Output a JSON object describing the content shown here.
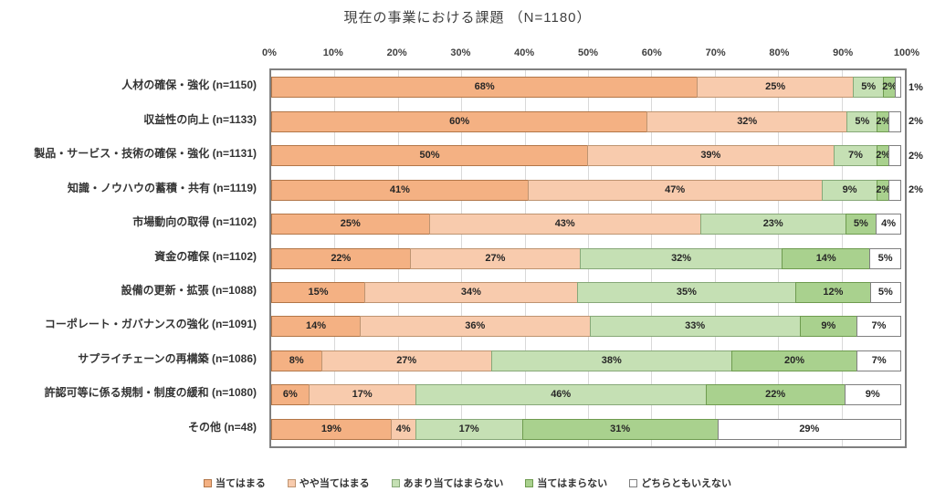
{
  "title": "現在の事業における課題 （N=1180）",
  "axis_ticks": [
    "0%",
    "10%",
    "20%",
    "30%",
    "40%",
    "50%",
    "60%",
    "70%",
    "80%",
    "90%",
    "100%"
  ],
  "legend_labels": [
    "当てはまる",
    "やや当てはまる",
    "あまり当てはまらない",
    "当てはまらない",
    "どちらともいえない"
  ],
  "palette": {
    "fills": [
      "#F4B183",
      "#F8CBAD",
      "#C5E0B4",
      "#A9D18E",
      "#FFFFFF"
    ],
    "borders": [
      "#B27648",
      "#BE9471",
      "#87A878",
      "#6E9B4F",
      "#7F7F7F"
    ],
    "grid": "#D9D9D9",
    "plot_border": "#7F7F7F"
  },
  "chart_data": {
    "type": "bar",
    "orientation": "horizontal",
    "stacked": true,
    "unit": "%",
    "xlim": [
      0,
      100
    ],
    "grid": true,
    "legend_position": "bottom",
    "title": "現在の事業における課題 （N=1180）",
    "series_names": [
      "当てはまる",
      "やや当てはまる",
      "あまり当てはまらない",
      "当てはまらない",
      "どちらともいえない"
    ],
    "rows": [
      {
        "category": "人材の確保・強化 (n=1150)",
        "values": [
          68,
          25,
          5,
          2,
          1
        ],
        "white_label_outside": true
      },
      {
        "category": "収益性の向上 (n=1133)",
        "values": [
          60,
          32,
          5,
          2,
          2
        ],
        "white_label_outside": true
      },
      {
        "category": "製品・サービス・技術の確保・強化 (n=1131)",
        "values": [
          50,
          39,
          7,
          2,
          2
        ],
        "white_label_outside": true
      },
      {
        "category": "知識・ノウハウの蓄積・共有 (n=1119)",
        "values": [
          41,
          47,
          9,
          2,
          2
        ],
        "white_label_outside": true
      },
      {
        "category": "市場動向の取得 (n=1102)",
        "values": [
          25,
          43,
          23,
          5,
          4
        ],
        "white_label_outside": false
      },
      {
        "category": "資金の確保 (n=1102)",
        "values": [
          22,
          27,
          32,
          14,
          5
        ],
        "white_label_outside": false
      },
      {
        "category": "設備の更新・拡張 (n=1088)",
        "values": [
          15,
          34,
          35,
          12,
          5
        ],
        "white_label_outside": false
      },
      {
        "category": "コーポレート・ガバナンスの強化 (n=1091)",
        "values": [
          14,
          36,
          33,
          9,
          7
        ],
        "white_label_outside": false
      },
      {
        "category": "サプライチェーンの再構築 (n=1086)",
        "values": [
          8,
          27,
          38,
          20,
          7
        ],
        "white_label_outside": false
      },
      {
        "category": "許認可等に係る規制・制度の緩和 (n=1080)",
        "values": [
          6,
          17,
          46,
          22,
          9
        ],
        "white_label_outside": false
      },
      {
        "category": "その他 (n=48)",
        "values": [
          19,
          4,
          17,
          31,
          29
        ],
        "white_label_outside": false
      }
    ]
  }
}
